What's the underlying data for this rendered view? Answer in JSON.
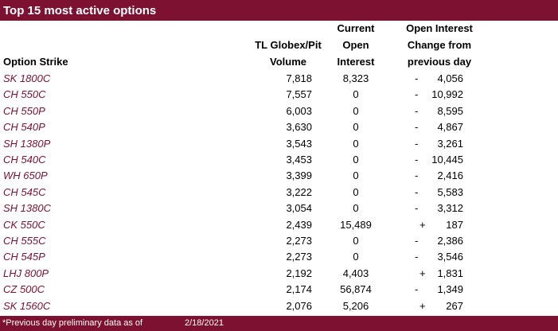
{
  "header": {
    "title": "Top 15 most active options"
  },
  "table": {
    "columns": [
      [
        "Option Strike"
      ],
      [
        "TL Globex/Pit",
        "Volume"
      ],
      [
        "Current",
        "Open",
        "Interest"
      ],
      [
        "Open Interest",
        "Change from",
        "previous day"
      ]
    ],
    "rows": [
      [
        "SK 1800C",
        "7,818",
        "8,323",
        "-",
        "4,056"
      ],
      [
        "CH 550C",
        "7,557",
        "0",
        "-",
        "10,992"
      ],
      [
        "CH 550P",
        "6,003",
        "0",
        "-",
        "8,595"
      ],
      [
        "CH 540P",
        "3,630",
        "0",
        "-",
        "4,867"
      ],
      [
        "SH 1380P",
        "3,543",
        "0",
        "-",
        "3,261"
      ],
      [
        "CH 540C",
        "3,453",
        "0",
        "-",
        "10,445"
      ],
      [
        "WH 650P",
        "3,399",
        "0",
        "-",
        "2,416"
      ],
      [
        "CH 545C",
        "3,222",
        "0",
        "-",
        "5,583"
      ],
      [
        "SH 1380C",
        "3,054",
        "0",
        "-",
        "3,312"
      ],
      [
        "CK 550C",
        "2,439",
        "15,489",
        "+",
        "187"
      ],
      [
        "CH 555C",
        "2,273",
        "0",
        "-",
        "2,386"
      ],
      [
        "CH 545P",
        "2,273",
        "0",
        "-",
        "3,546"
      ],
      [
        "LHJ 800P",
        "2,192",
        "4,403",
        "+",
        "1,831"
      ],
      [
        "CZ 500C",
        "2,174",
        "56,874",
        "-",
        "1,349"
      ],
      [
        "SK 1560C",
        "2,076",
        "5,206",
        "+",
        "267"
      ]
    ]
  },
  "footer": {
    "note": "*Previous day preliminary data as of",
    "date": "2/18/2021"
  }
}
